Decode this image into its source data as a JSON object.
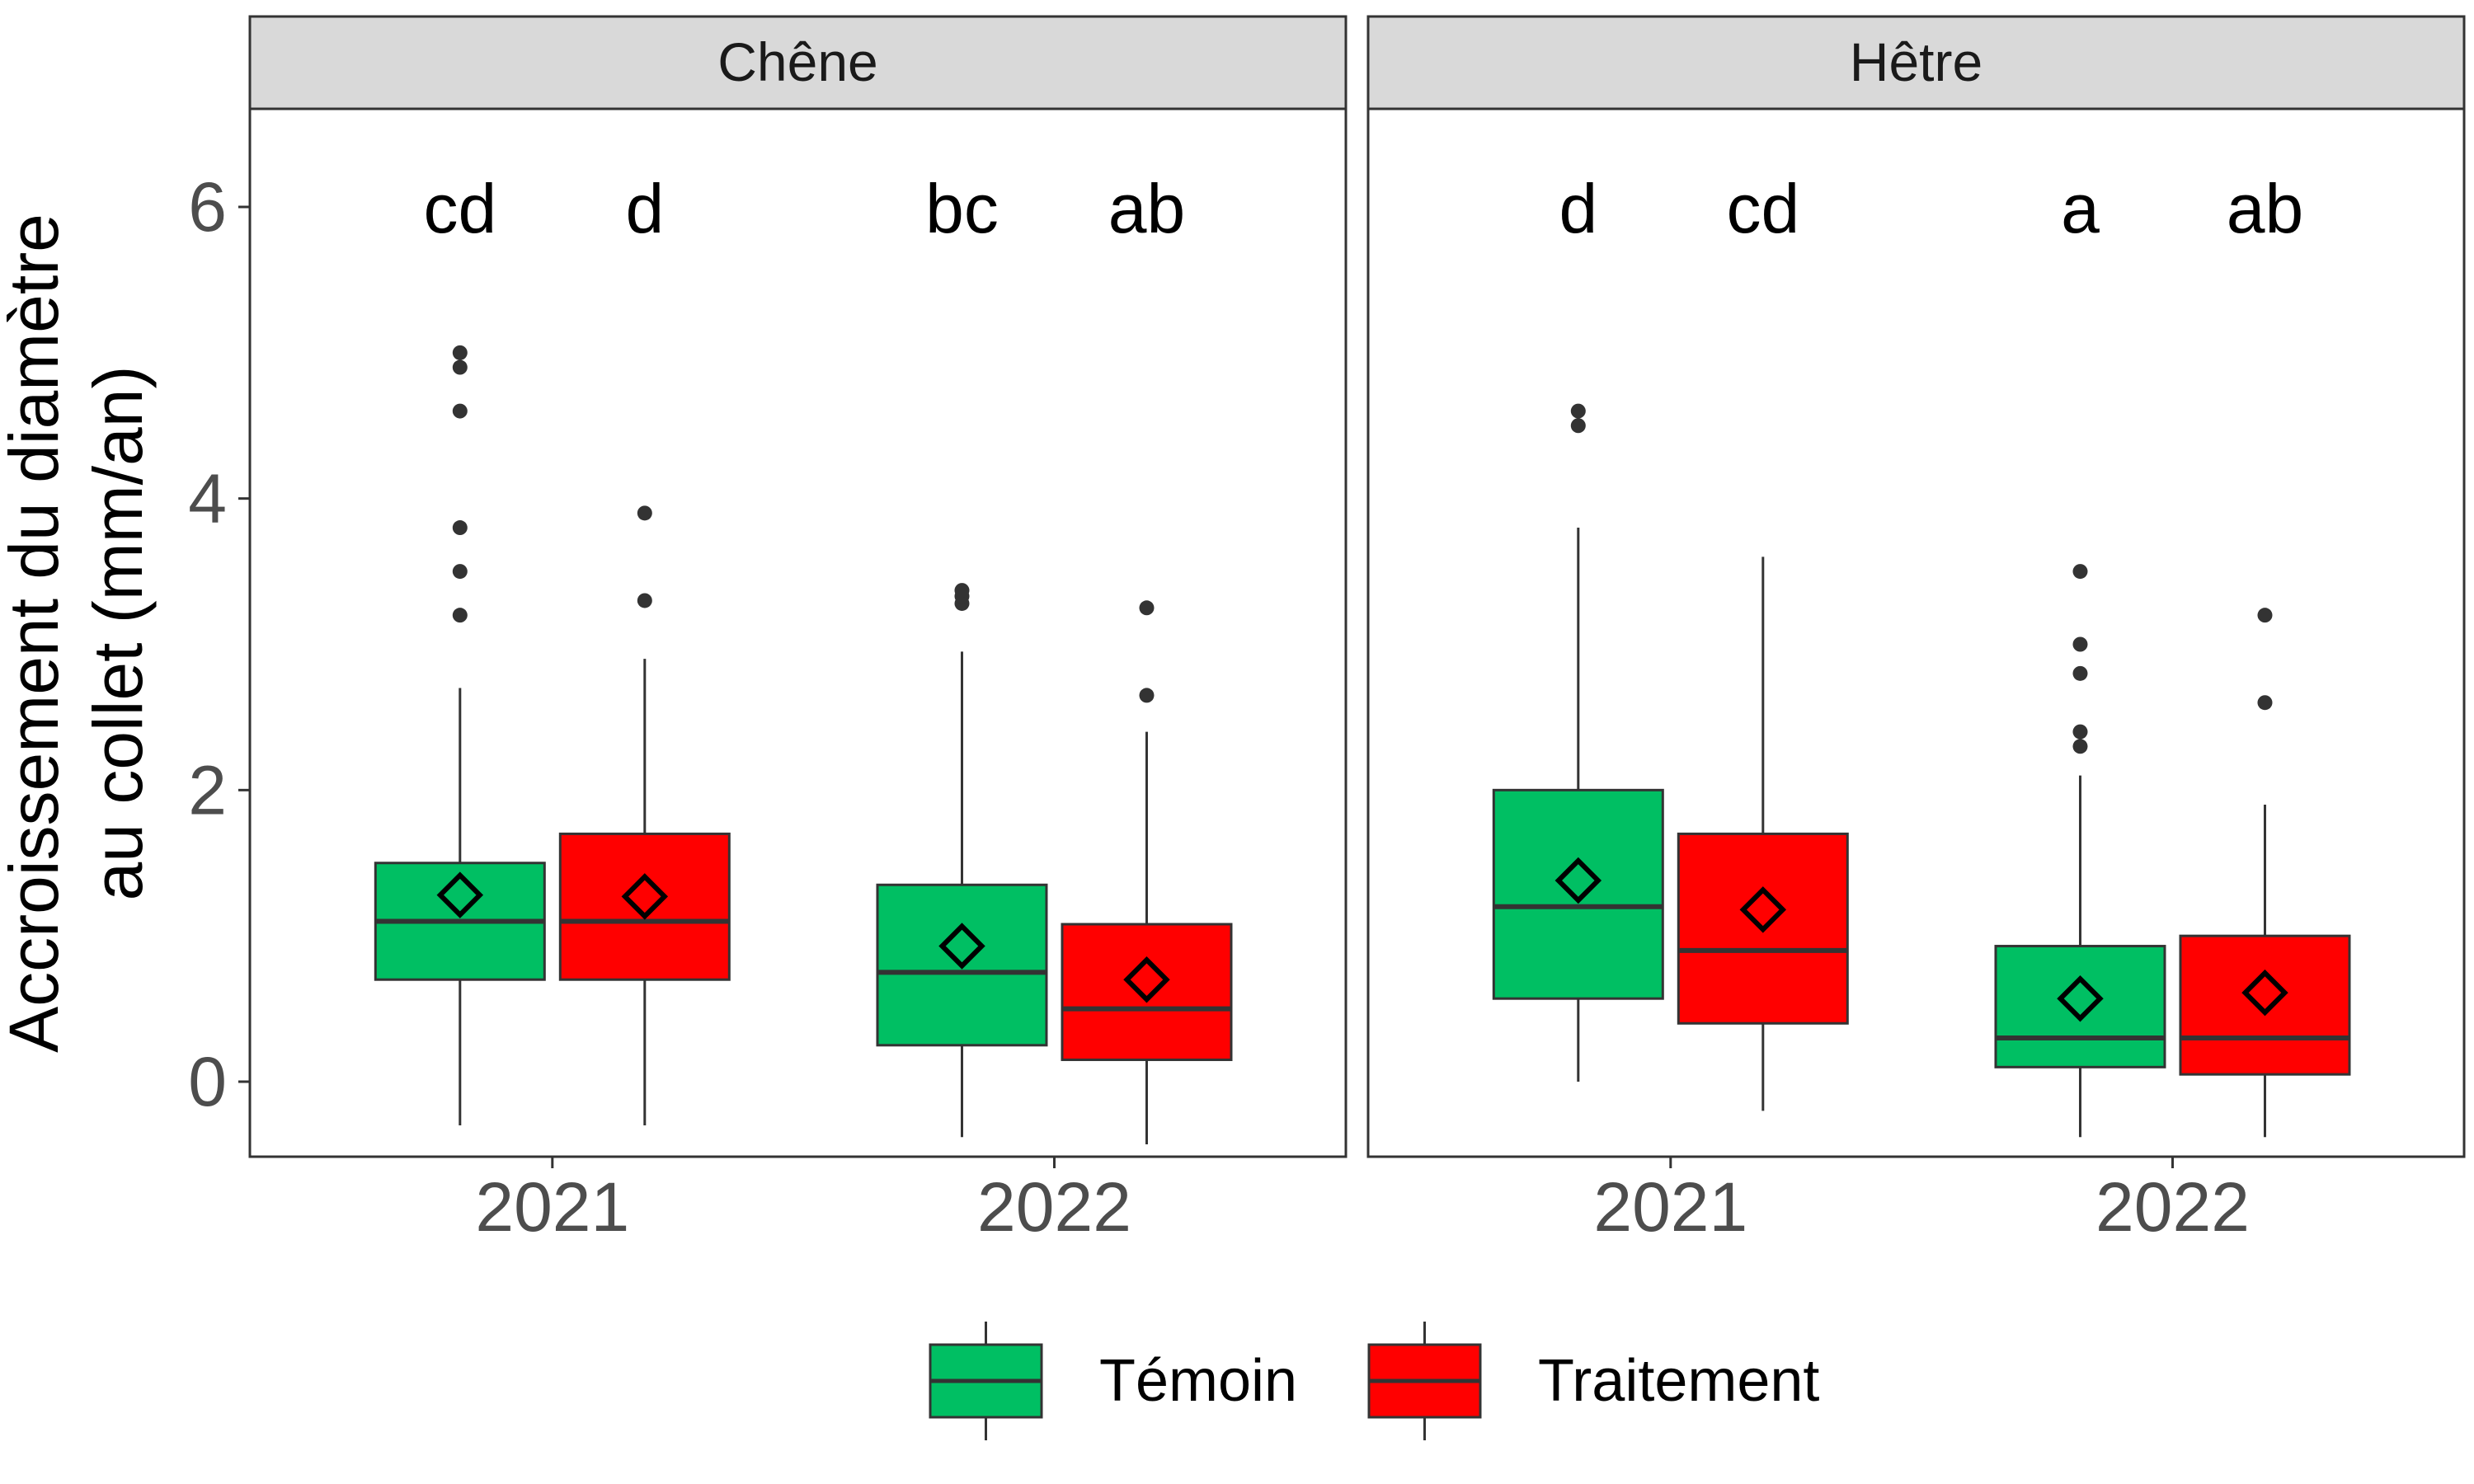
{
  "chart_data": {
    "type": "boxplot",
    "ylabel_lines": [
      "Accroissement du diamètre",
      "au collet (mm/an)"
    ],
    "xlabel": "",
    "ylim": [
      -0.5,
      6.65
    ],
    "yticks": [
      0,
      2,
      4,
      6
    ],
    "grid": false,
    "legend_position": "bottom",
    "categories": [
      "2021",
      "2022"
    ],
    "series": [
      {
        "name": "Témoin",
        "color": "#00BF63"
      },
      {
        "name": "Traitement",
        "color": "#FF0000"
      }
    ],
    "panels": [
      {
        "title": "Chêne",
        "boxes": [
          {
            "category": "2021",
            "series": "Témoin",
            "whisker_low": -0.3,
            "q1": 0.7,
            "median": 1.1,
            "q3": 1.5,
            "whisker_high": 2.7,
            "mean": 1.28,
            "outliers": [
              3.2,
              3.5,
              3.8,
              4.6,
              4.9,
              5.0
            ],
            "letter": "cd"
          },
          {
            "category": "2021",
            "series": "Traitement",
            "whisker_low": -0.3,
            "q1": 0.7,
            "median": 1.1,
            "q3": 1.7,
            "whisker_high": 2.9,
            "mean": 1.27,
            "outliers": [
              3.3,
              3.9
            ],
            "letter": "d"
          },
          {
            "category": "2022",
            "series": "Témoin",
            "whisker_low": -0.38,
            "q1": 0.25,
            "median": 0.75,
            "q3": 1.35,
            "whisker_high": 2.95,
            "mean": 0.93,
            "outliers": [
              3.28,
              3.33,
              3.37
            ],
            "letter": "bc"
          },
          {
            "category": "2022",
            "series": "Traitement",
            "whisker_low": -0.43,
            "q1": 0.15,
            "median": 0.5,
            "q3": 1.08,
            "whisker_high": 2.4,
            "mean": 0.7,
            "outliers": [
              2.65,
              3.25
            ],
            "letter": "ab"
          }
        ]
      },
      {
        "title": "Hêtre",
        "boxes": [
          {
            "category": "2021",
            "series": "Témoin",
            "whisker_low": 0.0,
            "q1": 0.57,
            "median": 1.2,
            "q3": 2.0,
            "whisker_high": 3.8,
            "mean": 1.38,
            "outliers": [
              4.5,
              4.6
            ],
            "letter": "d"
          },
          {
            "category": "2021",
            "series": "Traitement",
            "whisker_low": -0.2,
            "q1": 0.4,
            "median": 0.9,
            "q3": 1.7,
            "whisker_high": 3.6,
            "mean": 1.18,
            "outliers": [],
            "letter": "cd"
          },
          {
            "category": "2022",
            "series": "Témoin",
            "whisker_low": -0.38,
            "q1": 0.1,
            "median": 0.3,
            "q3": 0.93,
            "whisker_high": 2.1,
            "mean": 0.57,
            "outliers": [
              2.3,
              2.4,
              2.8,
              3.0,
              3.5
            ],
            "letter": "a"
          },
          {
            "category": "2022",
            "series": "Traitement",
            "whisker_low": -0.38,
            "q1": 0.05,
            "median": 0.3,
            "q3": 1.0,
            "whisker_high": 1.9,
            "mean": 0.61,
            "outliers": [
              2.6,
              3.2
            ],
            "letter": "ab"
          }
        ]
      }
    ]
  }
}
